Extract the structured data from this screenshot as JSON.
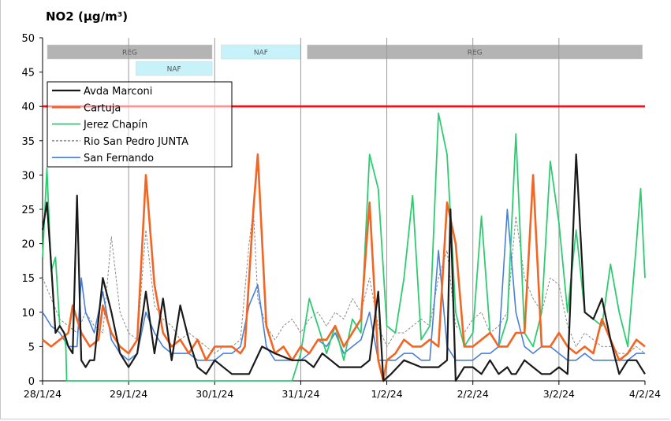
{
  "chart_data": {
    "type": "line",
    "title": "NO2 (µg/m³)",
    "xlabel": "",
    "ylabel": "",
    "ylim": [
      0,
      50
    ],
    "xlim": [
      0,
      7
    ],
    "yticks": [
      0,
      5,
      10,
      15,
      20,
      25,
      30,
      35,
      40,
      45,
      50
    ],
    "xtick_labels": [
      "28/1/24",
      "29/1/24",
      "30/1/24",
      "31/1/24",
      "1/2/24",
      "2/2/24",
      "3/2/24",
      "4/2/24"
    ],
    "grid": "vertical lines at each day",
    "legend_position": "upper-left inside plot",
    "limit_line": {
      "value": 40,
      "color": "#e8141c"
    },
    "bands": [
      {
        "label": "REG",
        "start": 0.0,
        "end": 1.97,
        "row": 1,
        "color": "#b4b4b4"
      },
      {
        "label": "NAF",
        "start": 1.03,
        "end": 1.97,
        "row": 2,
        "color": "#c8f2fa"
      },
      {
        "label": "NAF",
        "start": 2.02,
        "end": 3.0,
        "row": 1,
        "color": "#c8f2fa"
      },
      {
        "label": "REG",
        "start": 3.02,
        "end": 6.97,
        "row": 1,
        "color": "#b4b4b4"
      }
    ],
    "series": [
      {
        "name": "Avda Marconi",
        "color": "#1a1a1a",
        "width": 2.2,
        "dash": "",
        "x": [
          0.0,
          0.05,
          0.1,
          0.15,
          0.2,
          0.25,
          0.3,
          0.35,
          0.4,
          0.45,
          0.5,
          0.55,
          0.6,
          0.7,
          0.8,
          0.9,
          1.0,
          1.1,
          1.2,
          1.3,
          1.4,
          1.5,
          1.6,
          1.7,
          1.8,
          1.9,
          2.0,
          2.2,
          2.4,
          2.55,
          2.7,
          2.9,
          3.05,
          3.15,
          3.25,
          3.35,
          3.45,
          3.6,
          3.7,
          3.8,
          3.9,
          3.96,
          4.05,
          4.2,
          4.4,
          4.5,
          4.6,
          4.7,
          4.74,
          4.8,
          4.9,
          5.0,
          5.1,
          5.2,
          5.3,
          5.4,
          5.45,
          5.5,
          5.6,
          5.7,
          5.8,
          5.9,
          6.0,
          6.1,
          6.2,
          6.3,
          6.4,
          6.5,
          6.6,
          6.7,
          6.8,
          6.9,
          7.0
        ],
        "values": [
          22,
          26,
          17,
          7,
          8,
          7,
          5,
          4,
          27,
          3,
          2,
          3,
          3,
          15,
          10,
          4,
          2,
          4,
          13,
          4,
          12,
          3,
          11,
          6,
          2,
          1,
          3,
          1,
          1,
          5,
          4,
          3,
          3,
          2,
          4,
          3,
          2,
          2,
          2,
          3,
          13,
          0,
          1,
          3,
          2,
          2,
          2,
          3,
          25,
          0,
          2,
          2,
          1,
          3,
          1,
          2,
          1,
          1,
          3,
          2,
          1,
          1,
          2,
          1,
          33,
          10,
          9,
          12,
          6,
          1,
          3,
          3,
          1
        ]
      },
      {
        "name": "Cartuja",
        "color": "#f26522",
        "width": 2.6,
        "dash": "",
        "x": [
          0.0,
          0.1,
          0.2,
          0.3,
          0.35,
          0.45,
          0.55,
          0.65,
          0.7,
          0.8,
          0.9,
          1.0,
          1.1,
          1.2,
          1.3,
          1.4,
          1.5,
          1.6,
          1.7,
          1.8,
          1.9,
          2.0,
          2.1,
          2.2,
          2.3,
          2.35,
          2.45,
          2.5,
          2.6,
          2.7,
          2.8,
          2.9,
          3.0,
          3.1,
          3.2,
          3.3,
          3.4,
          3.5,
          3.6,
          3.7,
          3.8,
          3.9,
          3.96,
          4.0,
          4.1,
          4.2,
          4.3,
          4.4,
          4.5,
          4.6,
          4.7,
          4.8,
          4.9,
          5.0,
          5.1,
          5.2,
          5.3,
          5.4,
          5.5,
          5.6,
          5.7,
          5.8,
          5.9,
          6.0,
          6.1,
          6.2,
          6.3,
          6.4,
          6.5,
          6.6,
          6.7,
          6.8,
          6.9,
          7.0
        ],
        "values": [
          6,
          5,
          6,
          7,
          11,
          7,
          5,
          6,
          11,
          7,
          5,
          4,
          6,
          30,
          14,
          7,
          5,
          6,
          4,
          6,
          3,
          5,
          5,
          5,
          4,
          5,
          25,
          33,
          8,
          4,
          5,
          3,
          5,
          4,
          6,
          6,
          8,
          5,
          7,
          9,
          26,
          3,
          0,
          3,
          4,
          6,
          5,
          5,
          6,
          5,
          26,
          20,
          5,
          5,
          6,
          7,
          5,
          5,
          7,
          7,
          30,
          5,
          5,
          7,
          5,
          4,
          5,
          4,
          9,
          6,
          3,
          4,
          6,
          5
        ]
      },
      {
        "name": "Jerez Chapín",
        "color": "#2ecc71",
        "width": 1.8,
        "dash": "",
        "x": [
          0.0,
          0.05,
          0.1,
          0.15,
          0.2,
          0.25,
          0.27,
          0.28,
          0.3,
          0.35,
          0.38,
          0.4,
          0.5,
          0.6,
          0.7,
          0.8,
          0.9,
          1.0,
          1.1,
          1.2,
          1.3,
          1.4,
          1.5,
          1.6,
          1.7,
          1.8,
          1.9,
          2.0,
          2.1,
          2.2,
          2.3,
          2.4,
          2.5,
          2.6,
          2.8,
          2.9,
          3.0,
          3.1,
          3.2,
          3.3,
          3.4,
          3.5,
          3.6,
          3.7,
          3.8,
          3.9,
          4.0,
          4.1,
          4.2,
          4.3,
          4.4,
          4.5,
          4.6,
          4.7,
          4.8,
          4.9,
          5.0,
          5.1,
          5.2,
          5.3,
          5.4,
          5.5,
          5.6,
          5.7,
          5.8,
          5.9,
          6.0,
          6.1,
          6.2,
          6.3,
          6.4,
          6.5,
          6.6,
          6.7,
          6.8,
          6.9,
          6.95,
          7.0
        ],
        "values": [
          18,
          31,
          16,
          18,
          8,
          7,
          5,
          0,
          0,
          0,
          0,
          0,
          0,
          0,
          0,
          0,
          0,
          0,
          0,
          0,
          0,
          0,
          0,
          0,
          0,
          0,
          0,
          0,
          0,
          0,
          0,
          0,
          0,
          0,
          0,
          0,
          4,
          12,
          8,
          4,
          8,
          3,
          9,
          7,
          33,
          28,
          8,
          7,
          15,
          27,
          6,
          8,
          39,
          33,
          10,
          5,
          7,
          24,
          7,
          5,
          9,
          36,
          7,
          5,
          10,
          32,
          23,
          10,
          22,
          10,
          9,
          8,
          17,
          10,
          5,
          20,
          28,
          15
        ]
      },
      {
        "name": "Rio San Pedro JUNTA",
        "color": "#8a8a8a",
        "width": 1.0,
        "dash": "3,2",
        "x": [
          0.0,
          0.1,
          0.2,
          0.3,
          0.4,
          0.5,
          0.6,
          0.7,
          0.8,
          0.9,
          1.0,
          1.1,
          1.2,
          1.3,
          1.4,
          1.5,
          1.6,
          1.7,
          1.8,
          1.9,
          2.0,
          2.1,
          2.2,
          2.3,
          2.4,
          2.45,
          2.5,
          2.6,
          2.7,
          2.8,
          2.9,
          3.0,
          3.1,
          3.2,
          3.3,
          3.4,
          3.5,
          3.6,
          3.7,
          3.8,
          3.9,
          4.0,
          4.1,
          4.2,
          4.3,
          4.4,
          4.5,
          4.6,
          4.7,
          4.8,
          4.9,
          5.0,
          5.1,
          5.2,
          5.3,
          5.4,
          5.5,
          5.6,
          5.7,
          5.8,
          5.9,
          6.0,
          6.1,
          6.2,
          6.3,
          6.4,
          6.5,
          6.6,
          6.7,
          6.8,
          6.9,
          7.0
        ],
        "values": [
          15,
          12,
          9,
          8,
          7,
          10,
          8,
          7,
          21,
          10,
          7,
          6,
          22,
          11,
          9,
          8,
          6,
          7,
          6,
          5,
          4,
          5,
          5,
          6,
          20,
          25,
          12,
          8,
          6,
          8,
          9,
          7,
          9,
          10,
          8,
          10,
          9,
          12,
          10,
          15,
          8,
          5,
          7,
          7,
          8,
          9,
          8,
          15,
          19,
          8,
          7,
          9,
          10,
          7,
          8,
          10,
          24,
          15,
          12,
          10,
          15,
          14,
          8,
          5,
          7,
          6,
          5,
          5,
          4,
          4,
          5,
          4
        ]
      },
      {
        "name": "San Fernando",
        "color": "#4a7fd8",
        "width": 1.6,
        "dash": "",
        "x": [
          0.0,
          0.05,
          0.1,
          0.2,
          0.3,
          0.4,
          0.45,
          0.5,
          0.6,
          0.7,
          0.8,
          0.9,
          1.0,
          1.1,
          1.2,
          1.3,
          1.4,
          1.5,
          1.6,
          1.7,
          1.8,
          1.9,
          2.0,
          2.1,
          2.2,
          2.3,
          2.4,
          2.5,
          2.6,
          2.7,
          2.8,
          2.9,
          3.0,
          3.1,
          3.2,
          3.3,
          3.4,
          3.5,
          3.6,
          3.7,
          3.8,
          3.9,
          4.0,
          4.1,
          4.2,
          4.3,
          4.4,
          4.5,
          4.6,
          4.7,
          4.8,
          4.9,
          5.0,
          5.1,
          5.2,
          5.3,
          5.4,
          5.5,
          5.6,
          5.7,
          5.8,
          5.9,
          6.0,
          6.1,
          6.2,
          6.3,
          6.4,
          6.5,
          6.6,
          6.7,
          6.8,
          6.9,
          7.0
        ],
        "values": [
          10,
          9,
          8,
          7,
          5,
          5,
          15,
          10,
          7,
          13,
          6,
          4,
          3,
          4,
          10,
          7,
          5,
          4,
          4,
          4,
          3,
          3,
          3,
          4,
          4,
          5,
          11,
          14,
          5,
          3,
          3,
          3,
          3,
          4,
          6,
          5,
          7,
          4,
          5,
          6,
          10,
          3,
          3,
          3,
          4,
          4,
          3,
          3,
          19,
          5,
          3,
          3,
          3,
          4,
          4,
          5,
          25,
          10,
          5,
          4,
          5,
          5,
          4,
          3,
          3,
          4,
          3,
          3,
          3,
          3,
          3,
          4,
          4
        ]
      }
    ]
  }
}
